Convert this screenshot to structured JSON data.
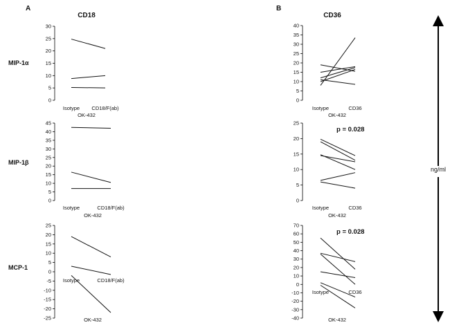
{
  "figure": {
    "panel_letters": [
      "A",
      "B"
    ],
    "column_titles": [
      "CD18",
      "CD36"
    ],
    "row_labels": [
      "MIP-1α",
      "MIP-1β",
      "MCP-1"
    ],
    "unit_label": "ng/ml"
  },
  "chart_data": [
    {
      "type": "line",
      "panel": "A",
      "row": "MIP-1α",
      "title": "CD18",
      "categories": [
        "Isotype",
        "CD18/F(ab)"
      ],
      "group_label": "OK-432",
      "ylim": [
        0,
        30
      ],
      "yticks": [
        0,
        5,
        10,
        15,
        20,
        25,
        30
      ],
      "pvalue": "",
      "series": [
        {
          "values": [
            24.8,
            21.0
          ]
        },
        {
          "values": [
            8.8,
            10.0
          ]
        },
        {
          "values": [
            5.2,
            5.0
          ]
        }
      ]
    },
    {
      "type": "line",
      "panel": "A",
      "row": "MIP-1β",
      "categories": [
        "Isotype",
        "CD18/F(ab)"
      ],
      "group_label": "OK-432",
      "ylim": [
        0,
        45
      ],
      "yticks": [
        0,
        5,
        10,
        15,
        20,
        25,
        30,
        35,
        40,
        45
      ],
      "pvalue": "",
      "series": [
        {
          "values": [
            42.5,
            42.0
          ]
        },
        {
          "values": [
            16.5,
            10.5
          ]
        },
        {
          "values": [
            7.0,
            7.0
          ]
        }
      ]
    },
    {
      "type": "line",
      "panel": "A",
      "row": "MCP-1",
      "categories": [
        "Isotype",
        "CD18/F(ab)"
      ],
      "group_label": "OK-432",
      "ylim": [
        -25,
        25
      ],
      "yticks": [
        -25,
        -20,
        -15,
        -10,
        -5,
        0,
        5,
        10,
        15,
        20,
        25
      ],
      "pvalue": "",
      "series": [
        {
          "values": [
            19.0,
            8.0
          ]
        },
        {
          "values": [
            3.0,
            -1.5
          ]
        },
        {
          "values": [
            -2.0,
            -22.0
          ]
        }
      ]
    },
    {
      "type": "line",
      "panel": "B",
      "row": "MIP-1α",
      "title": "CD36",
      "categories": [
        "Isotype",
        "CD36"
      ],
      "group_label": "OK-432",
      "ylim": [
        0,
        40
      ],
      "yticks": [
        0,
        5,
        10,
        15,
        20,
        25,
        30,
        35,
        40
      ],
      "pvalue": "",
      "series": [
        {
          "values": [
            8.0,
            33.5
          ]
        },
        {
          "values": [
            19.0,
            15.5
          ]
        },
        {
          "values": [
            15.0,
            18.0
          ]
        },
        {
          "values": [
            12.0,
            17.5
          ]
        },
        {
          "values": [
            10.0,
            16.5
          ]
        },
        {
          "values": [
            11.0,
            8.5
          ]
        }
      ]
    },
    {
      "type": "line",
      "panel": "B",
      "row": "MIP-1β",
      "categories": [
        "Isotype",
        "CD36"
      ],
      "group_label": "OK-432",
      "ylim": [
        0,
        25
      ],
      "yticks": [
        0,
        5,
        10,
        15,
        20,
        25
      ],
      "pvalue": "p = 0.028",
      "series": [
        {
          "values": [
            19.8,
            14.5
          ]
        },
        {
          "values": [
            19.0,
            13.0
          ]
        },
        {
          "values": [
            14.5,
            12.5
          ]
        },
        {
          "values": [
            14.8,
            10.0
          ]
        },
        {
          "values": [
            6.5,
            9.0
          ]
        },
        {
          "values": [
            6.0,
            4.0
          ]
        }
      ]
    },
    {
      "type": "line",
      "panel": "B",
      "row": "MCP-1",
      "categories": [
        "Isotype",
        "CD36"
      ],
      "group_label": "OK-432",
      "ylim": [
        -40,
        70
      ],
      "yticks": [
        -40,
        -30,
        -20,
        -10,
        0,
        10,
        20,
        30,
        40,
        50,
        60,
        70
      ],
      "pvalue": "p = 0.028",
      "series": [
        {
          "values": [
            55.0,
            18.0
          ]
        },
        {
          "values": [
            37.0,
            27.0
          ]
        },
        {
          "values": [
            36.0,
            0.0
          ]
        },
        {
          "values": [
            15.0,
            8.0
          ]
        },
        {
          "values": [
            2.0,
            -15.0
          ]
        },
        {
          "values": [
            -1.0,
            -28.0
          ]
        }
      ]
    }
  ]
}
